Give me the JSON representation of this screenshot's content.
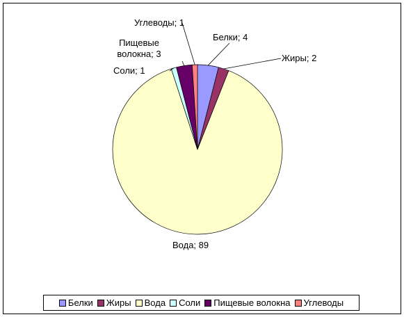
{
  "chart_data": {
    "type": "pie",
    "categories": [
      "Белки",
      "Жиры",
      "Вода",
      "Соли",
      "Пищевые волокна",
      "Углеводы"
    ],
    "values": [
      4,
      2,
      89,
      1,
      3,
      1
    ],
    "value_labels": [
      "Белки; 4",
      "Жиры; 2",
      "Вода; 89",
      "Соли; 1",
      "Пищевые волокна; 3",
      "Углеводы; 1"
    ],
    "colors": [
      "#9999ff",
      "#993366",
      "#ffffcc",
      "#ccffff",
      "#660066",
      "#ff8080"
    ],
    "legend": "bottom"
  }
}
